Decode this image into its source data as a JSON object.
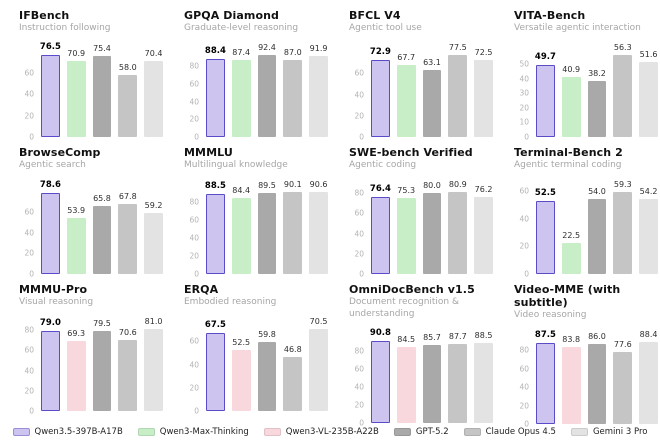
{
  "colors": {
    "qwen35": {
      "fill": "#cdc5f0",
      "border": "#5a4cc8"
    },
    "qwen3max": {
      "fill": "#c7eec7",
      "border": "#c7eec7"
    },
    "qwen3vl": {
      "fill": "#f8d8dd",
      "border": "#f8d8dd"
    },
    "gpt52": {
      "fill": "#a9a9a9",
      "border": "#a9a9a9"
    },
    "claude": {
      "fill": "#c5c5c5",
      "border": "#c5c5c5"
    },
    "gemini": {
      "fill": "#e3e3e3",
      "border": "#e3e3e3"
    }
  },
  "legend": {
    "items": [
      {
        "label": "Qwen3.5-397B-A17B",
        "color": "qwen35"
      },
      {
        "label": "Qwen3-Max-Thinking",
        "color": "qwen3max"
      },
      {
        "label": "Qwen3-VL-235B-A22B",
        "color": "qwen3vl"
      },
      {
        "label": "GPT-5.2",
        "color": "gpt52"
      },
      {
        "label": "Claude Opus 4.5",
        "color": "claude"
      },
      {
        "label": "Gemini 3 Pro",
        "color": "gemini"
      }
    ]
  },
  "chart_data": [
    {
      "type": "bar",
      "id": "ifbench",
      "title": "IFBench",
      "subtitle": "Instruction following",
      "yticks": [
        0,
        20,
        40,
        60
      ],
      "ylim": [
        0,
        80
      ],
      "grid": false,
      "legend_position": "bottom",
      "categories": [
        "Qwen3.5-397B-A17B",
        "Qwen3-Max-Thinking",
        "GPT-5.2",
        "Claude Opus 4.5",
        "Gemini 3 Pro"
      ],
      "values": [
        76.5,
        70.9,
        75.4,
        58.0,
        70.4
      ],
      "labels": [
        "76.5",
        "70.9",
        "75.4",
        "58.0",
        "70.4"
      ],
      "bar_colors": [
        "qwen35",
        "qwen3max",
        "gpt52",
        "claude",
        "gemini"
      ]
    },
    {
      "type": "bar",
      "id": "gpqa-diamond",
      "title": "GPQA Diamond",
      "subtitle": "Graduate-level reasoning",
      "yticks": [
        0,
        20,
        40,
        60,
        80
      ],
      "ylim": [
        0,
        97
      ],
      "grid": false,
      "legend_position": "bottom",
      "categories": [
        "Qwen3.5-397B-A17B",
        "Qwen3-Max-Thinking",
        "GPT-5.2",
        "Claude Opus 4.5",
        "Gemini 3 Pro"
      ],
      "values": [
        88.4,
        87.4,
        92.4,
        87.0,
        91.9
      ],
      "labels": [
        "88.4",
        "87.4",
        "92.4",
        "87.0",
        "91.9"
      ],
      "bar_colors": [
        "qwen35",
        "qwen3max",
        "gpt52",
        "claude",
        "gemini"
      ]
    },
    {
      "type": "bar",
      "id": "bfcl-v4",
      "title": "BFCL V4",
      "subtitle": "Agentic tool use",
      "yticks": [
        0,
        20,
        40,
        60
      ],
      "ylim": [
        0,
        81
      ],
      "grid": false,
      "legend_position": "bottom",
      "categories": [
        "Qwen3.5-397B-A17B",
        "Qwen3-Max-Thinking",
        "GPT-5.2",
        "Claude Opus 4.5",
        "Gemini 3 Pro"
      ],
      "values": [
        72.9,
        67.7,
        63.1,
        77.5,
        72.5
      ],
      "labels": [
        "72.9",
        "67.7",
        "63.1",
        "77.5",
        "72.5"
      ],
      "bar_colors": [
        "qwen35",
        "qwen3max",
        "gpt52",
        "claude",
        "gemini"
      ]
    },
    {
      "type": "bar",
      "id": "vita-bench",
      "title": "VITA-Bench",
      "subtitle": "Versatile agentic interaction",
      "yticks": [
        0,
        10,
        20,
        30,
        40,
        50
      ],
      "ylim": [
        0,
        59
      ],
      "grid": false,
      "legend_position": "bottom",
      "categories": [
        "Qwen3.5-397B-A17B",
        "Qwen3-Max-Thinking",
        "GPT-5.2",
        "Claude Opus 4.5",
        "Gemini 3 Pro"
      ],
      "values": [
        49.7,
        40.9,
        38.2,
        56.3,
        51.6
      ],
      "labels": [
        "49.7",
        "40.9",
        "38.2",
        "56.3",
        "51.6"
      ],
      "bar_colors": [
        "qwen35",
        "qwen3max",
        "gpt52",
        "claude",
        "gemini"
      ]
    },
    {
      "type": "bar",
      "id": "browsecomp",
      "title": "BrowseComp",
      "subtitle": "Agentic search",
      "yticks": [
        0,
        20,
        40,
        60
      ],
      "ylim": [
        0,
        83
      ],
      "grid": false,
      "legend_position": "bottom",
      "categories": [
        "Qwen3.5-397B-A17B",
        "Qwen3-Max-Thinking",
        "GPT-5.2",
        "Claude Opus 4.5",
        "Gemini 3 Pro"
      ],
      "values": [
        78.6,
        53.9,
        65.8,
        67.8,
        59.2
      ],
      "labels": [
        "78.6",
        "53.9",
        "65.8",
        "67.8",
        "59.2"
      ],
      "bar_colors": [
        "qwen35",
        "qwen3max",
        "gpt52",
        "claude",
        "gemini"
      ]
    },
    {
      "type": "bar",
      "id": "mmmlu",
      "title": "MMMLU",
      "subtitle": "Multilingual knowledge",
      "yticks": [
        0,
        20,
        40,
        60,
        80
      ],
      "ylim": [
        0,
        95
      ],
      "grid": false,
      "legend_position": "bottom",
      "categories": [
        "Qwen3.5-397B-A17B",
        "Qwen3-Max-Thinking",
        "GPT-5.2",
        "Claude Opus 4.5",
        "Gemini 3 Pro"
      ],
      "values": [
        88.5,
        84.4,
        89.5,
        90.1,
        90.6
      ],
      "labels": [
        "88.5",
        "84.4",
        "89.5",
        "90.1",
        "90.6"
      ],
      "bar_colors": [
        "qwen35",
        "qwen3max",
        "gpt52",
        "claude",
        "gemini"
      ]
    },
    {
      "type": "bar",
      "id": "swe-bench-verified",
      "title": "SWE-bench Verified",
      "subtitle": "Agentic coding",
      "yticks": [
        0,
        20,
        40,
        60,
        80
      ],
      "ylim": [
        0,
        85
      ],
      "grid": false,
      "legend_position": "bottom",
      "categories": [
        "Qwen3.5-397B-A17B",
        "Qwen3-Max-Thinking",
        "GPT-5.2",
        "Claude Opus 4.5",
        "Gemini 3 Pro"
      ],
      "values": [
        76.4,
        75.3,
        80.0,
        80.9,
        76.2
      ],
      "labels": [
        "76.4",
        "75.3",
        "80.0",
        "80.9",
        "76.2"
      ],
      "bar_colors": [
        "qwen35",
        "qwen3max",
        "gpt52",
        "claude",
        "gemini"
      ]
    },
    {
      "type": "bar",
      "id": "terminal-bench-2",
      "title": "Terminal-Bench 2",
      "subtitle": "Agentic terminal coding",
      "yticks": [
        0,
        20,
        40,
        60
      ],
      "ylim": [
        0,
        62
      ],
      "grid": false,
      "legend_position": "bottom",
      "categories": [
        "Qwen3.5-397B-A17B",
        "Qwen3-Max-Thinking",
        "GPT-5.2",
        "Claude Opus 4.5",
        "Gemini 3 Pro"
      ],
      "values": [
        52.5,
        22.5,
        54.0,
        59.3,
        54.2
      ],
      "labels": [
        "52.5",
        "22.5",
        "54.0",
        "59.3",
        "54.2"
      ],
      "bar_colors": [
        "qwen35",
        "qwen3max",
        "gpt52",
        "claude",
        "gemini"
      ]
    },
    {
      "type": "bar",
      "id": "mmmu-pro",
      "title": "MMMU-Pro",
      "subtitle": "Visual reasoning",
      "yticks": [
        0,
        20,
        40,
        60,
        80
      ],
      "ylim": [
        0,
        85
      ],
      "grid": false,
      "legend_position": "bottom",
      "categories": [
        "Qwen3.5-397B-A17B",
        "Qwen3-VL-235B-A22B",
        "GPT-5.2",
        "Claude Opus 4.5",
        "Gemini 3 Pro"
      ],
      "values": [
        79.0,
        69.3,
        79.5,
        70.6,
        81.0
      ],
      "labels": [
        "79.0",
        "69.3",
        "79.5",
        "70.6",
        "81.0"
      ],
      "bar_colors": [
        "qwen35",
        "qwen3vl",
        "gpt52",
        "claude",
        "gemini"
      ]
    },
    {
      "type": "bar",
      "id": "erqa",
      "title": "ERQA",
      "subtitle": "Embodied reasoning",
      "yticks": [
        0,
        20,
        40,
        60
      ],
      "ylim": [
        0,
        74
      ],
      "grid": false,
      "legend_position": "bottom",
      "categories": [
        "Qwen3.5-397B-A17B",
        "Qwen3-VL-235B-A22B",
        "GPT-5.2",
        "Claude Opus 4.5",
        "Gemini 3 Pro"
      ],
      "values": [
        67.5,
        52.5,
        59.8,
        46.8,
        70.5
      ],
      "labels": [
        "67.5",
        "52.5",
        "59.8",
        "46.8",
        "70.5"
      ],
      "bar_colors": [
        "qwen35",
        "qwen3vl",
        "gpt52",
        "claude",
        "gemini"
      ]
    },
    {
      "type": "bar",
      "id": "omnidocbench-v1-5",
      "title": "OmniDocBench v1.5",
      "subtitle": "Document recognition & understanding",
      "yticks": [
        0,
        20,
        40,
        60,
        80
      ],
      "ylim": [
        0,
        95
      ],
      "grid": false,
      "legend_position": "bottom",
      "categories": [
        "Qwen3.5-397B-A17B",
        "Qwen3-VL-235B-A22B",
        "GPT-5.2",
        "Claude Opus 4.5",
        "Gemini 3 Pro"
      ],
      "values": [
        90.8,
        84.5,
        85.7,
        87.7,
        88.5
      ],
      "labels": [
        "90.8",
        "84.5",
        "85.7",
        "87.7",
        "88.5"
      ],
      "bar_colors": [
        "qwen35",
        "qwen3vl",
        "gpt52",
        "claude",
        "gemini"
      ]
    },
    {
      "type": "bar",
      "id": "video-mme",
      "title": "Video-MME (with subtitle)",
      "subtitle": "Video reasoning",
      "yticks": [
        0,
        20,
        40,
        60,
        80
      ],
      "ylim": [
        0,
        93
      ],
      "grid": false,
      "legend_position": "bottom",
      "categories": [
        "Qwen3.5-397B-A17B",
        "Qwen3-VL-235B-A22B",
        "GPT-5.2",
        "Claude Opus 4.5",
        "Gemini 3 Pro"
      ],
      "values": [
        87.5,
        83.8,
        86.0,
        77.6,
        88.4
      ],
      "labels": [
        "87.5",
        "83.8",
        "86.0",
        "77.6",
        "88.4"
      ],
      "bar_colors": [
        "qwen35",
        "qwen3vl",
        "gpt52",
        "claude",
        "gemini"
      ]
    }
  ]
}
